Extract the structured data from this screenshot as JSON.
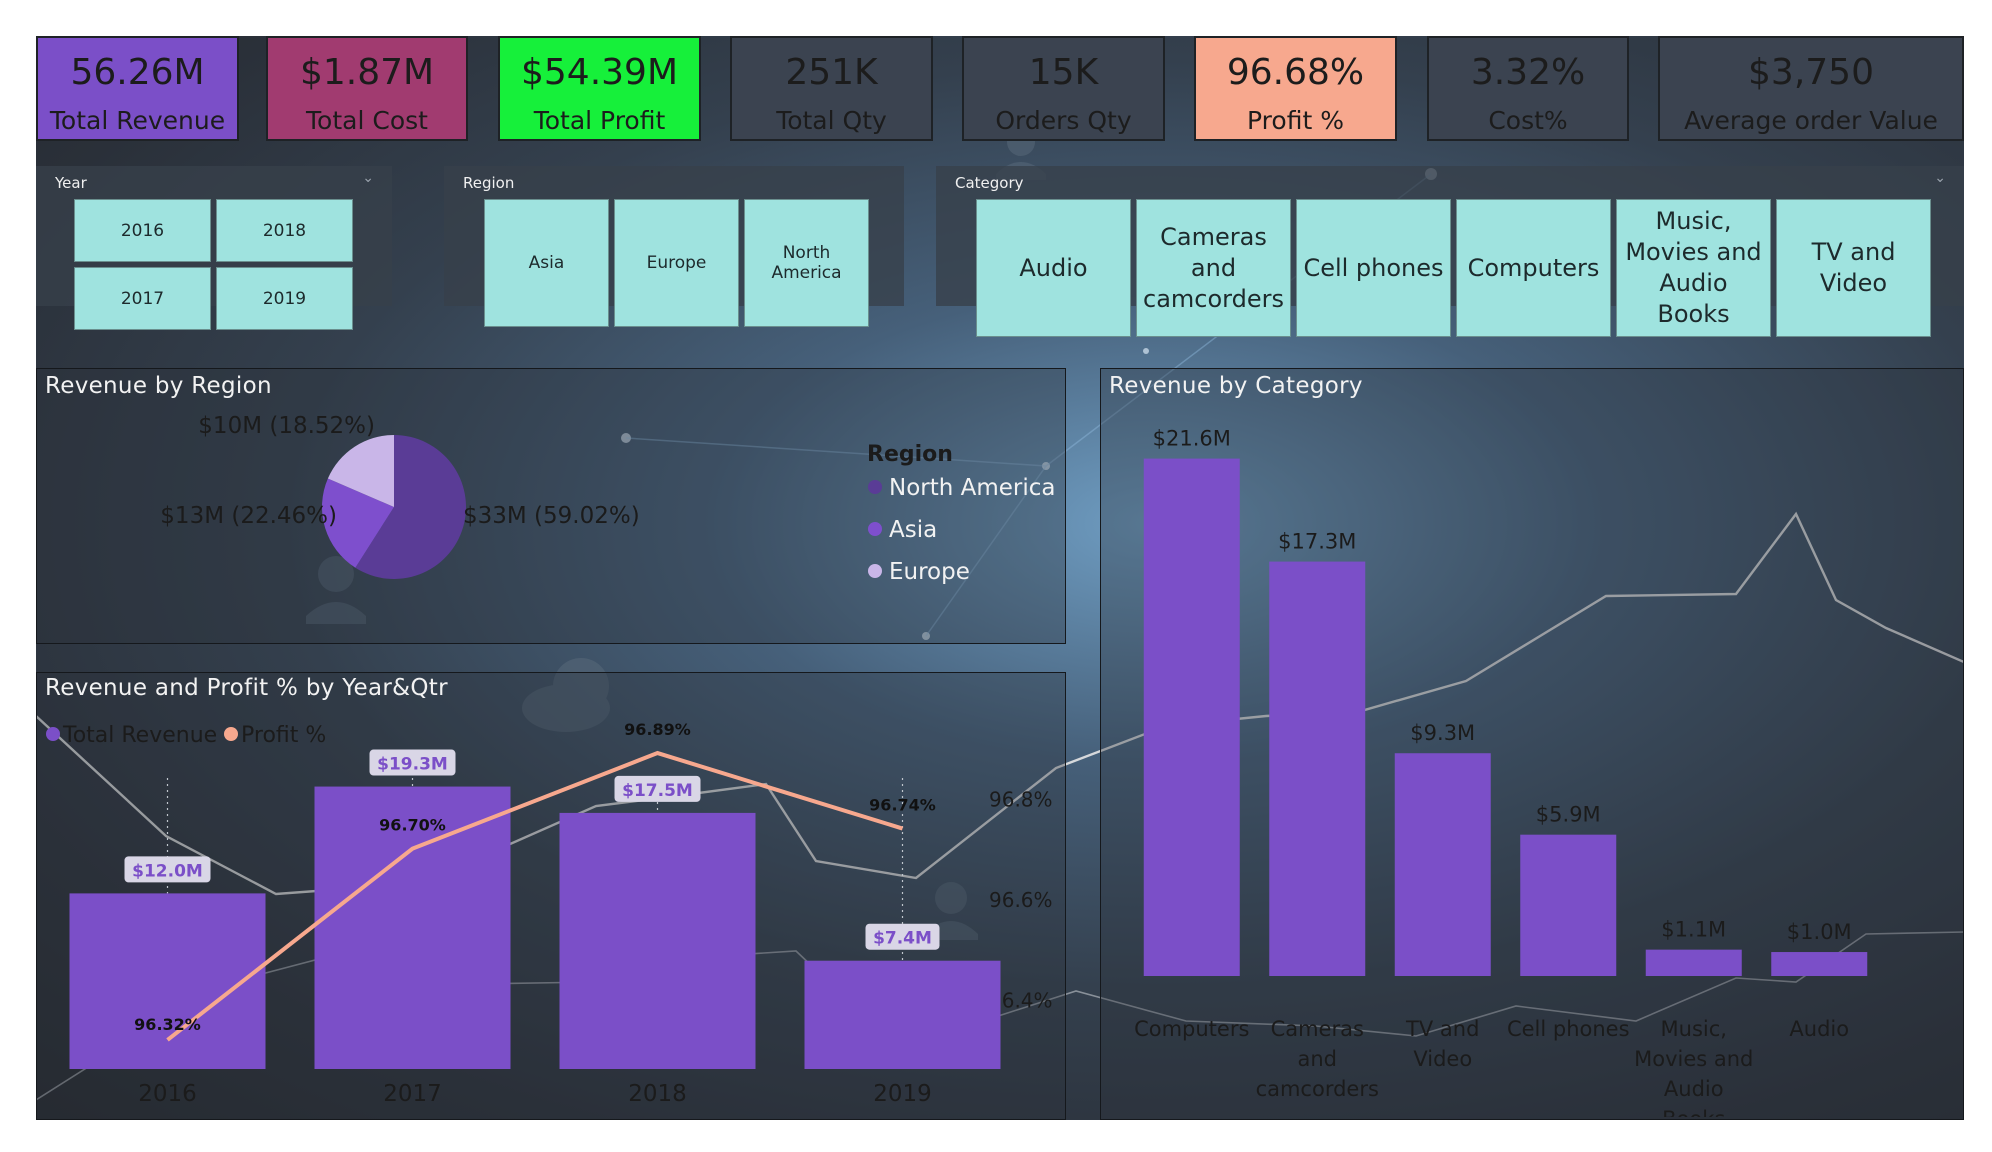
{
  "kpis": [
    {
      "value": "56.26M",
      "label": "Total Revenue",
      "color": "#7b4fc8"
    },
    {
      "value": "$1.87M",
      "label": "Total Cost",
      "color": "#a13b70"
    },
    {
      "value": "$54.39M",
      "label": "Total Profit",
      "color": "#16f03a"
    },
    {
      "value": "251K",
      "label": "Total Qty",
      "color": "#3b4350"
    },
    {
      "value": "15K",
      "label": "Orders Qty",
      "color": "#3b4350"
    },
    {
      "value": "96.68%",
      "label": "Profit %",
      "color": "#f7a88e"
    },
    {
      "value": "3.32%",
      "label": "Cost%",
      "color": "#3b4350"
    },
    {
      "value": "$3,750",
      "label": "Average order Value",
      "color": "#3b4350"
    }
  ],
  "slicers": {
    "year": {
      "title": "Year",
      "options": [
        "2016",
        "2018",
        "2017",
        "2019"
      ]
    },
    "region": {
      "title": "Region",
      "options": [
        "Asia",
        "Europe",
        "North America"
      ]
    },
    "category": {
      "title": "Category",
      "options": [
        "Audio",
        "Cameras and camcorders",
        "Cell phones",
        "Computers",
        "Music, Movies and Audio Books",
        "TV and Video"
      ]
    }
  },
  "chart_data": [
    {
      "type": "pie",
      "title": "Revenue by Region",
      "legend_title": "Region",
      "legend_position": "right",
      "slices": [
        {
          "name": "North America",
          "value": 33,
          "percent": 59.02,
          "label": "$33M (59.02%)",
          "color": "#5a3c96"
        },
        {
          "name": "Asia",
          "value": 13,
          "percent": 22.46,
          "label": "$13M (22.46%)",
          "color": "#7e4fcd"
        },
        {
          "name": "Europe",
          "value": 10,
          "percent": 18.52,
          "label": "$10M (18.52%)",
          "color": "#c9b6e8"
        }
      ]
    },
    {
      "type": "bar",
      "title": "Revenue and Profit % by Year&Qtr",
      "legend_position": "top-left",
      "categories": [
        "2016",
        "2017",
        "2018",
        "2019"
      ],
      "series": [
        {
          "name": "Total Revenue",
          "type": "bar",
          "values": [
            12.0,
            19.3,
            17.5,
            7.4
          ],
          "labels": [
            "$12.0M",
            "$19.3M",
            "$17.5M",
            "$7.4M"
          ],
          "color": "#7b4fc8"
        },
        {
          "name": "Profit %",
          "type": "line",
          "values": [
            96.32,
            96.7,
            96.89,
            96.74
          ],
          "labels": [
            "96.32%",
            "96.70%",
            "96.89%",
            "96.74%"
          ],
          "color": "#f7a88e"
        }
      ],
      "y_right_ticks": [
        "96.8%",
        "96.6%",
        "96.4%"
      ],
      "y_right_range": [
        96.3,
        96.9
      ],
      "ylim": [
        0,
        20.5
      ]
    },
    {
      "type": "bar",
      "title": "Revenue by Category",
      "categories": [
        "Computers",
        "Cameras and camcorders",
        "TV and Video",
        "Cell phones",
        "Music, Movies and Audio Books",
        "Audio"
      ],
      "category_lines": [
        [
          "Computers"
        ],
        [
          "Cameras",
          "and",
          "camcorders"
        ],
        [
          "TV and",
          "Video"
        ],
        [
          "Cell phones"
        ],
        [
          "Music,",
          "Movies and",
          "Audio",
          "Books"
        ],
        [
          "Audio"
        ]
      ],
      "values": [
        21.6,
        17.3,
        9.3,
        5.9,
        1.1,
        1.0
      ],
      "labels": [
        "$21.6M",
        "$17.3M",
        "$9.3M",
        "$5.9M",
        "$1.1M",
        "$1.0M"
      ],
      "color": "#7b4fc8",
      "ylim": [
        0,
        22
      ]
    }
  ]
}
